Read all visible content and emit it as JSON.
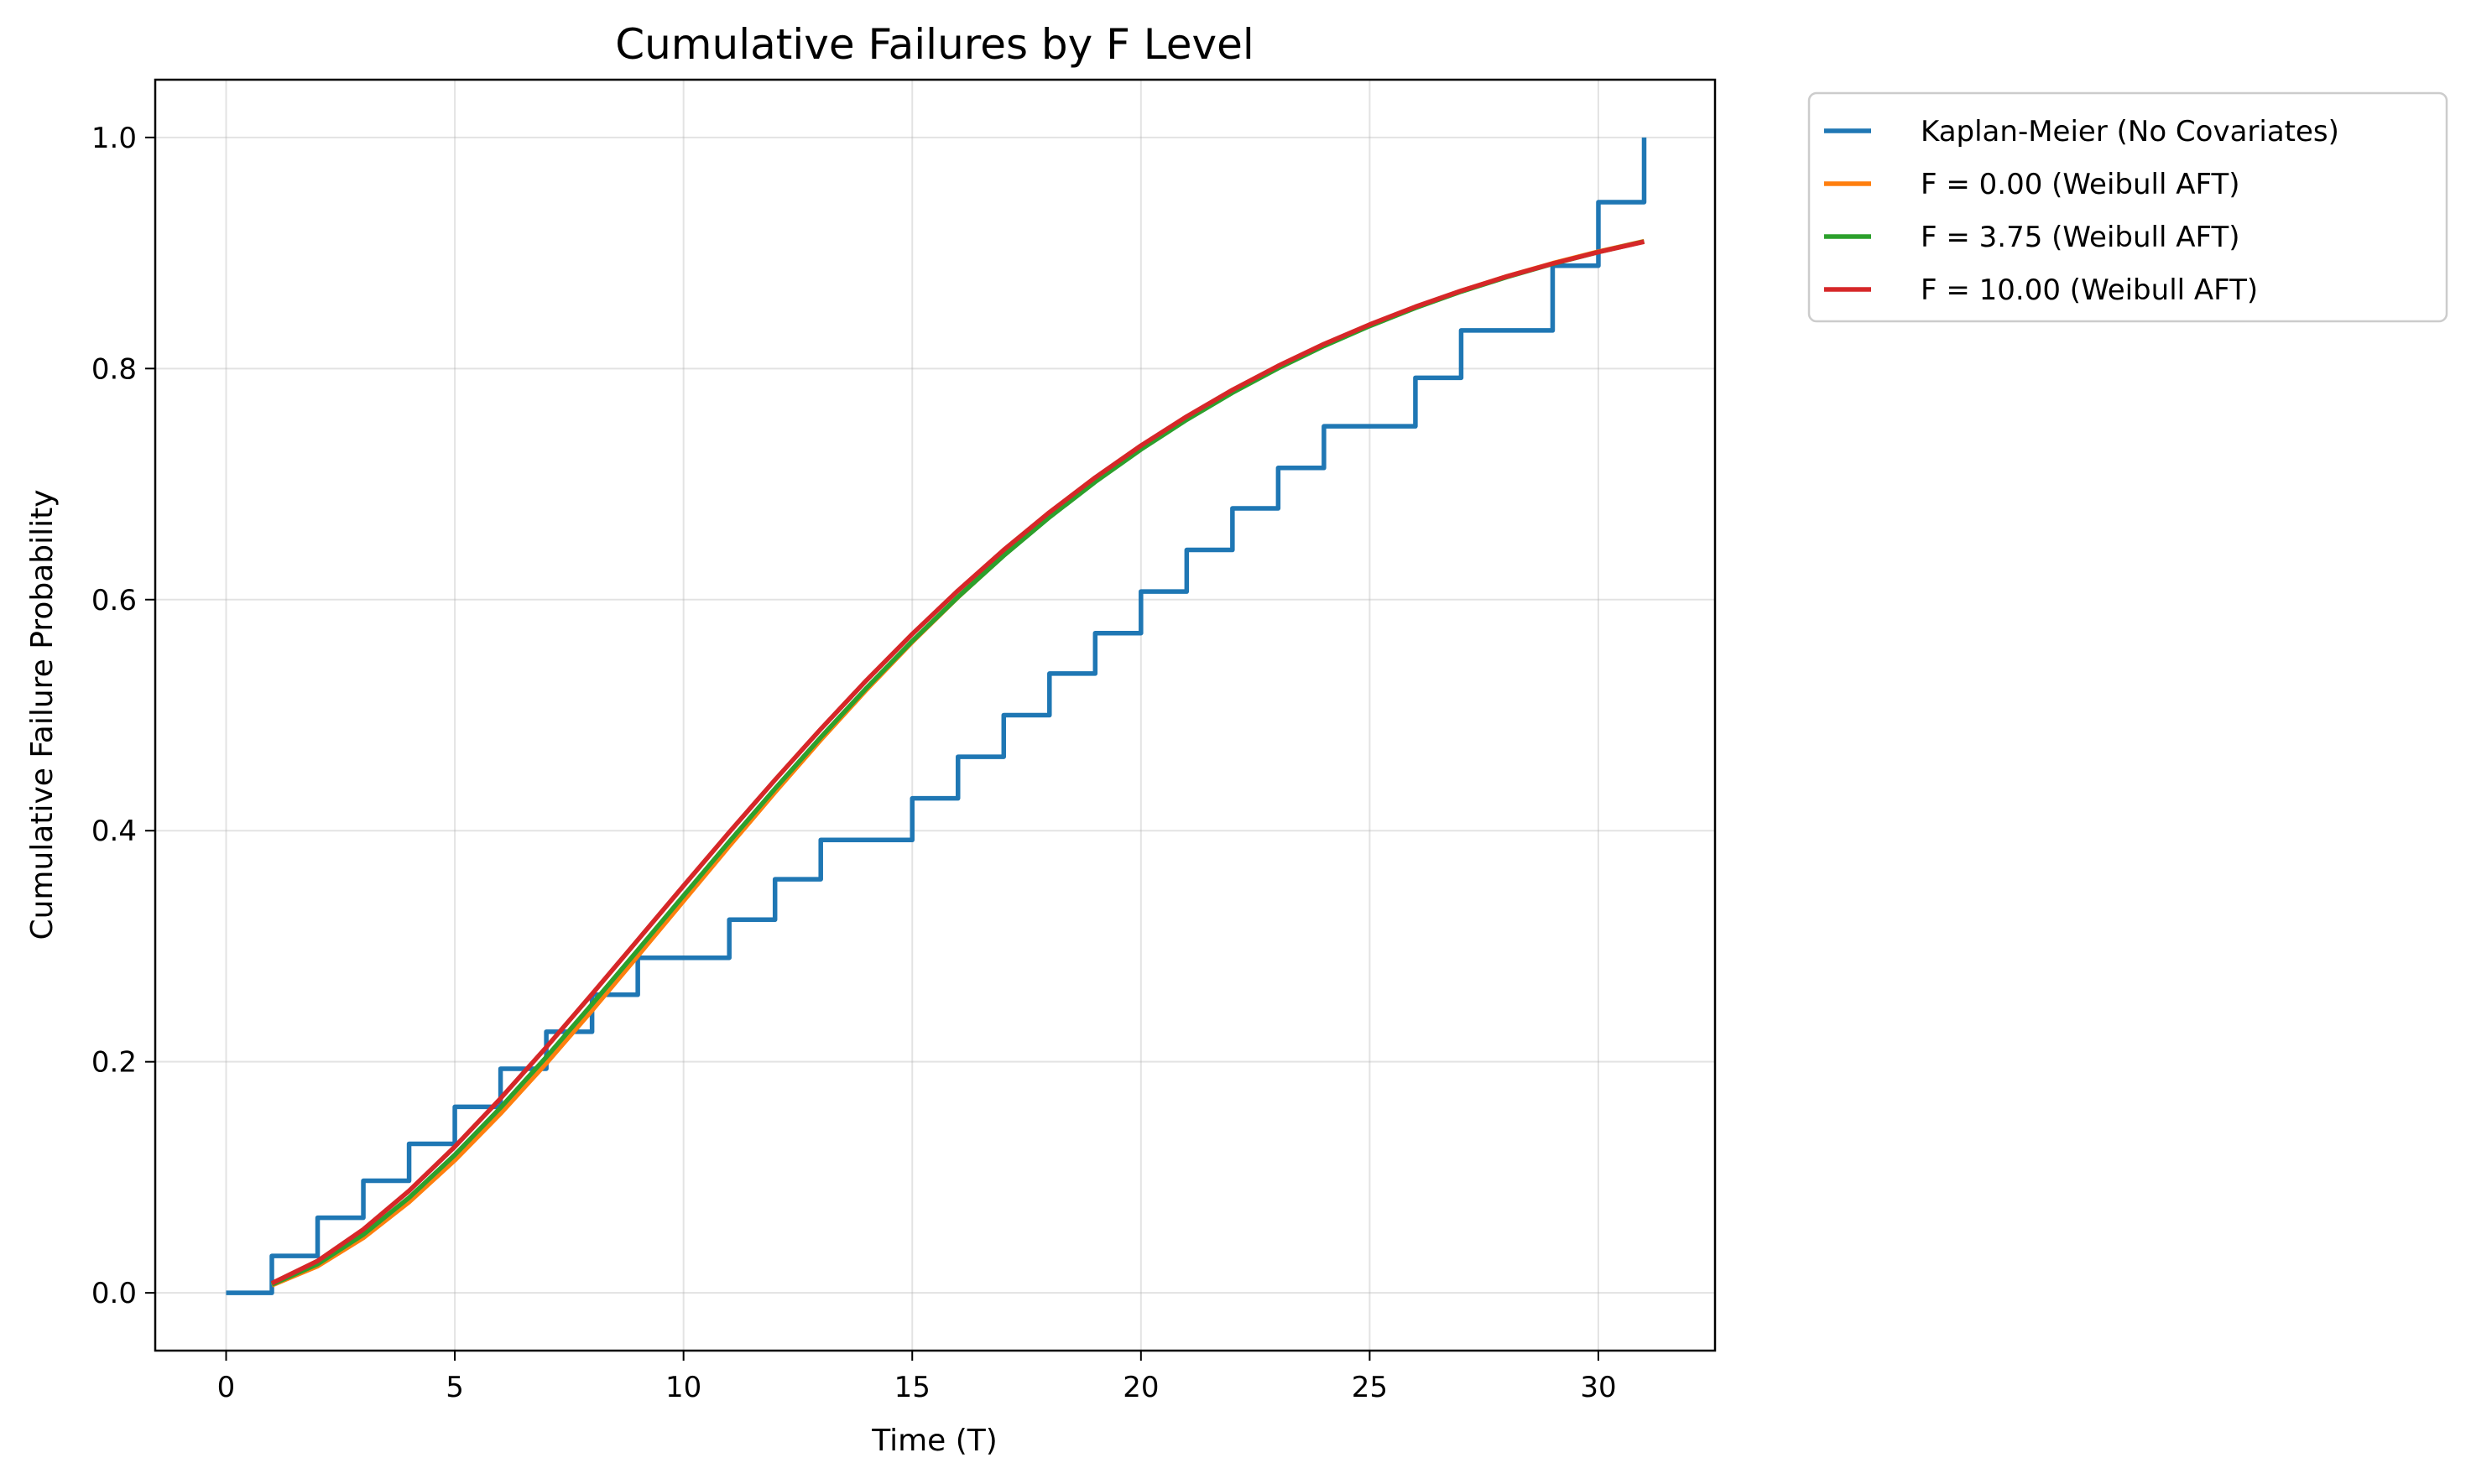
{
  "chart_data": {
    "type": "line",
    "title": "Cumulative Failures by F Level",
    "xlabel": "Time (T)",
    "ylabel": "Cumulative Failure Probability",
    "xlim": [
      -1.55,
      32.55
    ],
    "ylim": [
      -0.05,
      1.05
    ],
    "xticks": [
      0,
      5,
      10,
      15,
      20,
      25,
      30
    ],
    "yticks": [
      0.0,
      0.2,
      0.4,
      0.6,
      0.8,
      1.0
    ],
    "xtick_labels": [
      "0",
      "5",
      "10",
      "15",
      "20",
      "25",
      "30"
    ],
    "ytick_labels": [
      "0.0",
      "0.2",
      "0.4",
      "0.6",
      "0.8",
      "1.0"
    ],
    "grid": true,
    "legend_position": "outside upper right",
    "series": [
      {
        "name": "Kaplan-Meier (No Covariates)",
        "color": "#1f77b4",
        "style": "step",
        "x": [
          0,
          1,
          2,
          3,
          4,
          5,
          6,
          7,
          8,
          9,
          11,
          12,
          13,
          15,
          16,
          17,
          18,
          19,
          20,
          21,
          22,
          23,
          24,
          26,
          27,
          29,
          30,
          31
        ],
        "y": [
          0.0,
          0.032,
          0.065,
          0.097,
          0.129,
          0.161,
          0.194,
          0.226,
          0.258,
          0.29,
          0.323,
          0.358,
          0.392,
          0.428,
          0.464,
          0.5,
          0.536,
          0.571,
          0.607,
          0.643,
          0.679,
          0.714,
          0.75,
          0.792,
          0.833,
          0.889,
          0.944,
          1.0
        ]
      },
      {
        "name": "F = 0.00 (Weibull AFT)",
        "color": "#ff7f0e",
        "style": "line",
        "x": [
          1,
          2,
          3,
          4,
          5,
          6,
          7,
          8,
          9,
          10,
          11,
          12,
          13,
          14,
          15,
          16,
          17,
          18,
          19,
          20,
          21,
          22,
          23,
          24,
          25,
          26,
          27,
          28,
          29,
          30,
          31
        ],
        "y": [
          0.0066,
          0.0231,
          0.0476,
          0.0786,
          0.1148,
          0.1552,
          0.1987,
          0.2445,
          0.2916,
          0.3392,
          0.3867,
          0.4333,
          0.4786,
          0.522,
          0.5633,
          0.6021,
          0.6383,
          0.6719,
          0.7028,
          0.731,
          0.7568,
          0.7801,
          0.8013,
          0.8204,
          0.8376,
          0.8532,
          0.8672,
          0.8798,
          0.8911,
          0.9012,
          0.9102
        ]
      },
      {
        "name": "F = 3.75 (Weibull AFT)",
        "color": "#2ca02c",
        "style": "line",
        "x": [
          1,
          2,
          3,
          4,
          5,
          6,
          7,
          8,
          9,
          10,
          11,
          12,
          13,
          14,
          15,
          16,
          17,
          18,
          19,
          20,
          21,
          22,
          23,
          24,
          25,
          26,
          27,
          28,
          29,
          30,
          31
        ],
        "y": [
          0.0073,
          0.0249,
          0.0505,
          0.0824,
          0.1194,
          0.1603,
          0.2041,
          0.2498,
          0.2966,
          0.3437,
          0.3905,
          0.4363,
          0.4808,
          0.5235,
          0.5641,
          0.6023,
          0.6381,
          0.6713,
          0.7019,
          0.73,
          0.7557,
          0.7791,
          0.8003,
          0.8195,
          0.8368,
          0.8525,
          0.8666,
          0.8792,
          0.8906,
          0.9008,
          0.9099
        ]
      },
      {
        "name": "F = 10.00 (Weibull AFT)",
        "color": "#d62728",
        "style": "line",
        "x": [
          1,
          2,
          3,
          4,
          5,
          6,
          7,
          8,
          9,
          10,
          11,
          12,
          13,
          14,
          15,
          16,
          17,
          18,
          19,
          20,
          21,
          22,
          23,
          24,
          25,
          26,
          27,
          28,
          29,
          30,
          31
        ],
        "y": [
          0.0083,
          0.0276,
          0.0549,
          0.0883,
          0.1265,
          0.1683,
          0.2126,
          0.2586,
          0.3054,
          0.3523,
          0.3987,
          0.444,
          0.488,
          0.5302,
          0.5702,
          0.6078,
          0.643,
          0.6756,
          0.7057,
          0.7333,
          0.7585,
          0.7815,
          0.8023,
          0.8212,
          0.8381,
          0.8535,
          0.8673,
          0.8797,
          0.8908,
          0.9008,
          0.9097
        ]
      }
    ]
  }
}
